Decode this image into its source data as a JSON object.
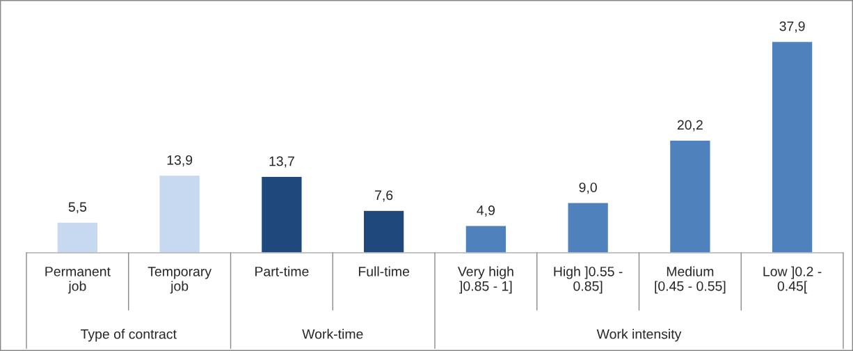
{
  "chart_data": {
    "type": "bar",
    "categories": [
      "Permanent\njob",
      "Temporary\njob",
      "Part-time",
      "Full-time",
      "Very high\n]0.85 - 1]",
      "High ]0.55 -\n0.85]",
      "Medium\n[0.45 - 0.55]",
      "Low ]0.2 -\n0.45["
    ],
    "values": [
      5.5,
      13.9,
      13.7,
      7.6,
      4.9,
      9.0,
      20.2,
      37.9
    ],
    "value_labels": [
      "5,5",
      "13,9",
      "13,7",
      "7,6",
      "4,9",
      "9,0",
      "20,2",
      "37,9"
    ],
    "colors": [
      "#c6d9f1",
      "#c6d9f1",
      "#1f497d",
      "#1f497d",
      "#4f81bd",
      "#4f81bd",
      "#4f81bd",
      "#4f81bd"
    ],
    "annotations": [
      "Type of contract",
      "Work-time",
      "Work intensity"
    ],
    "grid": false,
    "legend": false
  }
}
